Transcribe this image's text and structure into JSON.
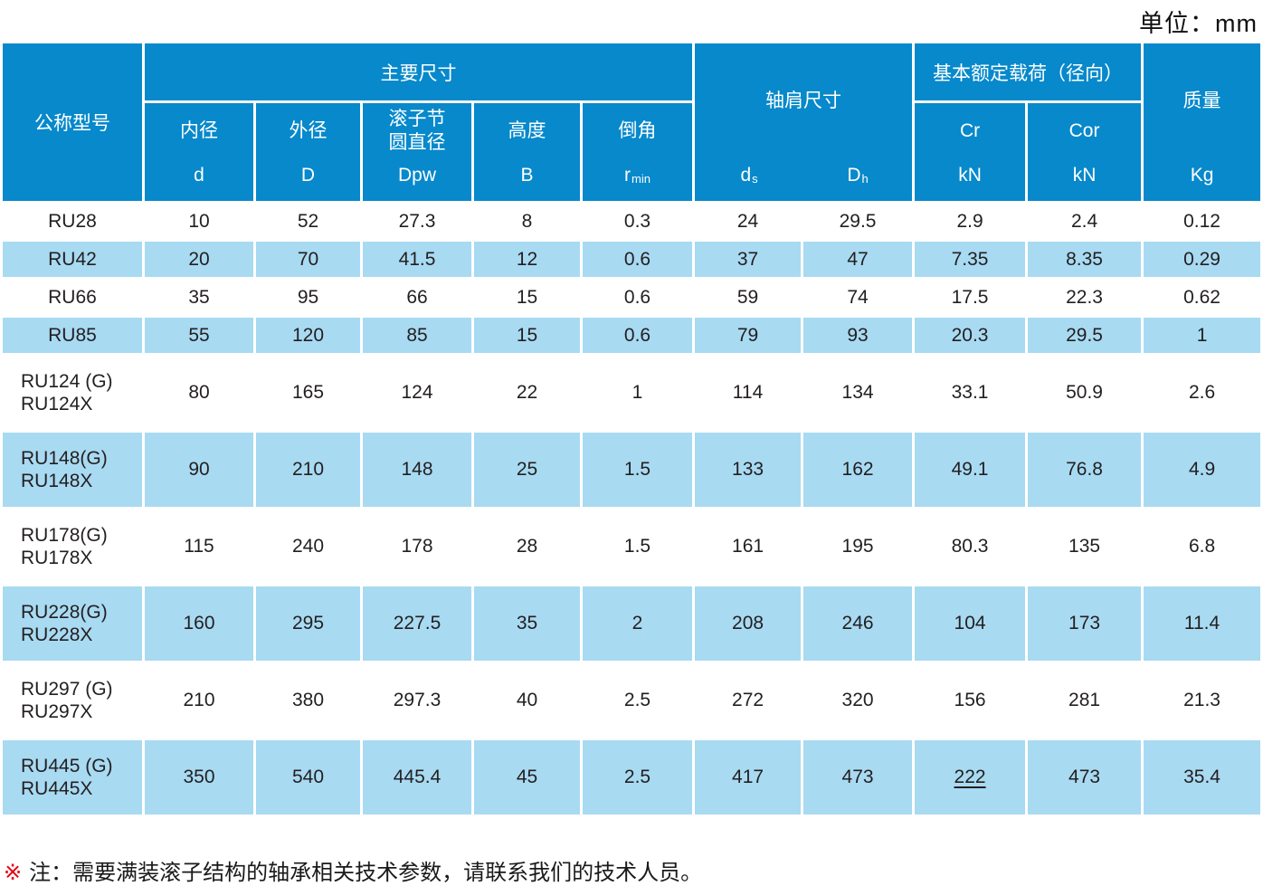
{
  "unit_label": "单位：mm",
  "colors": {
    "header_bg": "#0789cb",
    "row_alt_bg": "#a8daf2",
    "header_text": "#ffffff",
    "body_text": "#231f20",
    "note_marker": "#e60012"
  },
  "table": {
    "header": {
      "model": "公称型号",
      "main_dims_group": "主要尺寸",
      "shoulder_group": "轴肩尺寸",
      "load_group": "基本额定载荷（径向）",
      "mass_group": "质量",
      "mass_unit": "Kg",
      "bore": {
        "label": "内径",
        "symbol": "d"
      },
      "outer": {
        "label": "外径",
        "symbol": "D"
      },
      "pitch": {
        "label": "滚子节\n圆直径",
        "symbol": "Dpw"
      },
      "height": {
        "label": "高度",
        "symbol": "B"
      },
      "chamfer": {
        "label": "倒角",
        "base": "r",
        "sub": "min"
      },
      "ds": {
        "base": "d",
        "sub": "s"
      },
      "dh": {
        "base": "D",
        "sub": "h"
      },
      "cr": {
        "label": "Cr",
        "unit": "kN"
      },
      "cor": {
        "label": "Cor",
        "unit": "kN"
      }
    },
    "rows": [
      {
        "model": [
          "RU28"
        ],
        "values": [
          "10",
          "52",
          "27.3",
          "8",
          "0.3",
          "24",
          "29.5",
          "2.9",
          "2.4",
          "0.12"
        ],
        "shaded": false
      },
      {
        "model": [
          "RU42"
        ],
        "values": [
          "20",
          "70",
          "41.5",
          "12",
          "0.6",
          "37",
          "47",
          "7.35",
          "8.35",
          "0.29"
        ],
        "shaded": true
      },
      {
        "model": [
          "RU66"
        ],
        "values": [
          "35",
          "95",
          "66",
          "15",
          "0.6",
          "59",
          "74",
          "17.5",
          "22.3",
          "0.62"
        ],
        "shaded": false
      },
      {
        "model": [
          "RU85"
        ],
        "values": [
          "55",
          "120",
          "85",
          "15",
          "0.6",
          "79",
          "93",
          "20.3",
          "29.5",
          "1"
        ],
        "shaded": true
      },
      {
        "model": [
          "RU124 (G)",
          "RU124X"
        ],
        "values": [
          "80",
          "165",
          "124",
          "22",
          "1",
          "114",
          "134",
          "33.1",
          "50.9",
          "2.6"
        ],
        "shaded": false
      },
      {
        "model": [
          "RU148(G)",
          "RU148X"
        ],
        "values": [
          "90",
          "210",
          "148",
          "25",
          "1.5",
          "133",
          "162",
          "49.1",
          "76.8",
          "4.9"
        ],
        "shaded": true
      },
      {
        "model": [
          "RU178(G)",
          "RU178X"
        ],
        "values": [
          "115",
          "240",
          "178",
          "28",
          "1.5",
          "161",
          "195",
          "80.3",
          "135",
          "6.8"
        ],
        "shaded": false
      },
      {
        "model": [
          "RU228(G)",
          "RU228X"
        ],
        "values": [
          "160",
          "295",
          "227.5",
          "35",
          "2",
          "208",
          "246",
          "104",
          "173",
          "11.4"
        ],
        "shaded": true
      },
      {
        "model": [
          "RU297 (G)",
          "RU297X"
        ],
        "values": [
          "210",
          "380",
          "297.3",
          "40",
          "2.5",
          "272",
          "320",
          "156",
          "281",
          "21.3"
        ],
        "shaded": false
      },
      {
        "model": [
          "RU445 (G)",
          "RU445X"
        ],
        "values": [
          "350",
          "540",
          "445.4",
          "45",
          "2.5",
          "417",
          "473",
          "222",
          "473",
          "35.4"
        ],
        "shaded": true,
        "underlined": [
          7
        ]
      }
    ]
  },
  "note": {
    "marker": "※",
    "text": "注：需要满装滚子结构的轴承相关技术参数，请联系我们的技术人员。"
  }
}
